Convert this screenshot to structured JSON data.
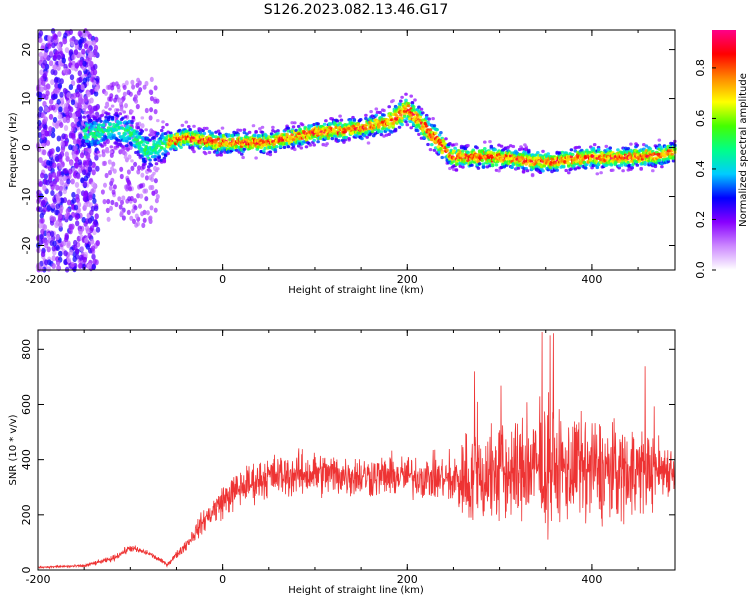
{
  "title": "S126.2023.082.13.46.G17",
  "chart_data": [
    {
      "type": "heatmap",
      "xlabel": "Height of straight line (km)",
      "ylabel": "Frequency (Hz)",
      "xlim": [
        -200,
        490
      ],
      "ylim": [
        -25,
        24
      ],
      "xticks": [
        "-200",
        "0",
        "200",
        "400"
      ],
      "yticks": [
        "-20",
        "-10",
        "0",
        "10",
        "20"
      ],
      "ridge": {
        "x": [
          -140,
          -120,
          -100,
          -80,
          -60,
          -40,
          0,
          50,
          100,
          150,
          180,
          200,
          220,
          250,
          300,
          350,
          400,
          450,
          490
        ],
        "y": [
          3,
          4,
          3,
          -1,
          1,
          2,
          1,
          1,
          3,
          4,
          5,
          8,
          4,
          -2,
          -2,
          -3,
          -2,
          -2,
          -1
        ]
      },
      "colorbar": {
        "label": "Normalized spectral amplitude",
        "ticks": [
          "0.0",
          "0.2",
          "0.4",
          "0.6",
          "0.8"
        ],
        "range": [
          0,
          0.95
        ],
        "colors": [
          "#ffffff",
          "#cc88ff",
          "#8800ff",
          "#0000ff",
          "#00ccff",
          "#00ff88",
          "#44ff00",
          "#ffff00",
          "#ff8800",
          "#ff0000",
          "#ff0088"
        ]
      }
    },
    {
      "type": "line",
      "xlabel": "Height of straight line (km)",
      "ylabel": "SNR (10 * v/v)",
      "xlim": [
        -200,
        490
      ],
      "ylim": [
        0,
        870
      ],
      "xticks": [
        "-200",
        "0",
        "200",
        "400"
      ],
      "yticks": [
        "0",
        "200",
        "400",
        "600",
        "800"
      ],
      "color": "#ee3333",
      "envelope": {
        "x": [
          -200,
          -150,
          -120,
          -100,
          -80,
          -60,
          -40,
          -20,
          0,
          20,
          50,
          100,
          150,
          200,
          250,
          260,
          300,
          350,
          400,
          450,
          490
        ],
        "mean": [
          10,
          15,
          40,
          80,
          60,
          20,
          90,
          180,
          250,
          300,
          340,
          350,
          340,
          340,
          330,
          330,
          350,
          370,
          360,
          360,
          370
        ],
        "spread": [
          5,
          8,
          15,
          20,
          15,
          10,
          30,
          60,
          90,
          100,
          110,
          120,
          110,
          110,
          120,
          250,
          280,
          300,
          280,
          250,
          120
        ]
      }
    }
  ]
}
